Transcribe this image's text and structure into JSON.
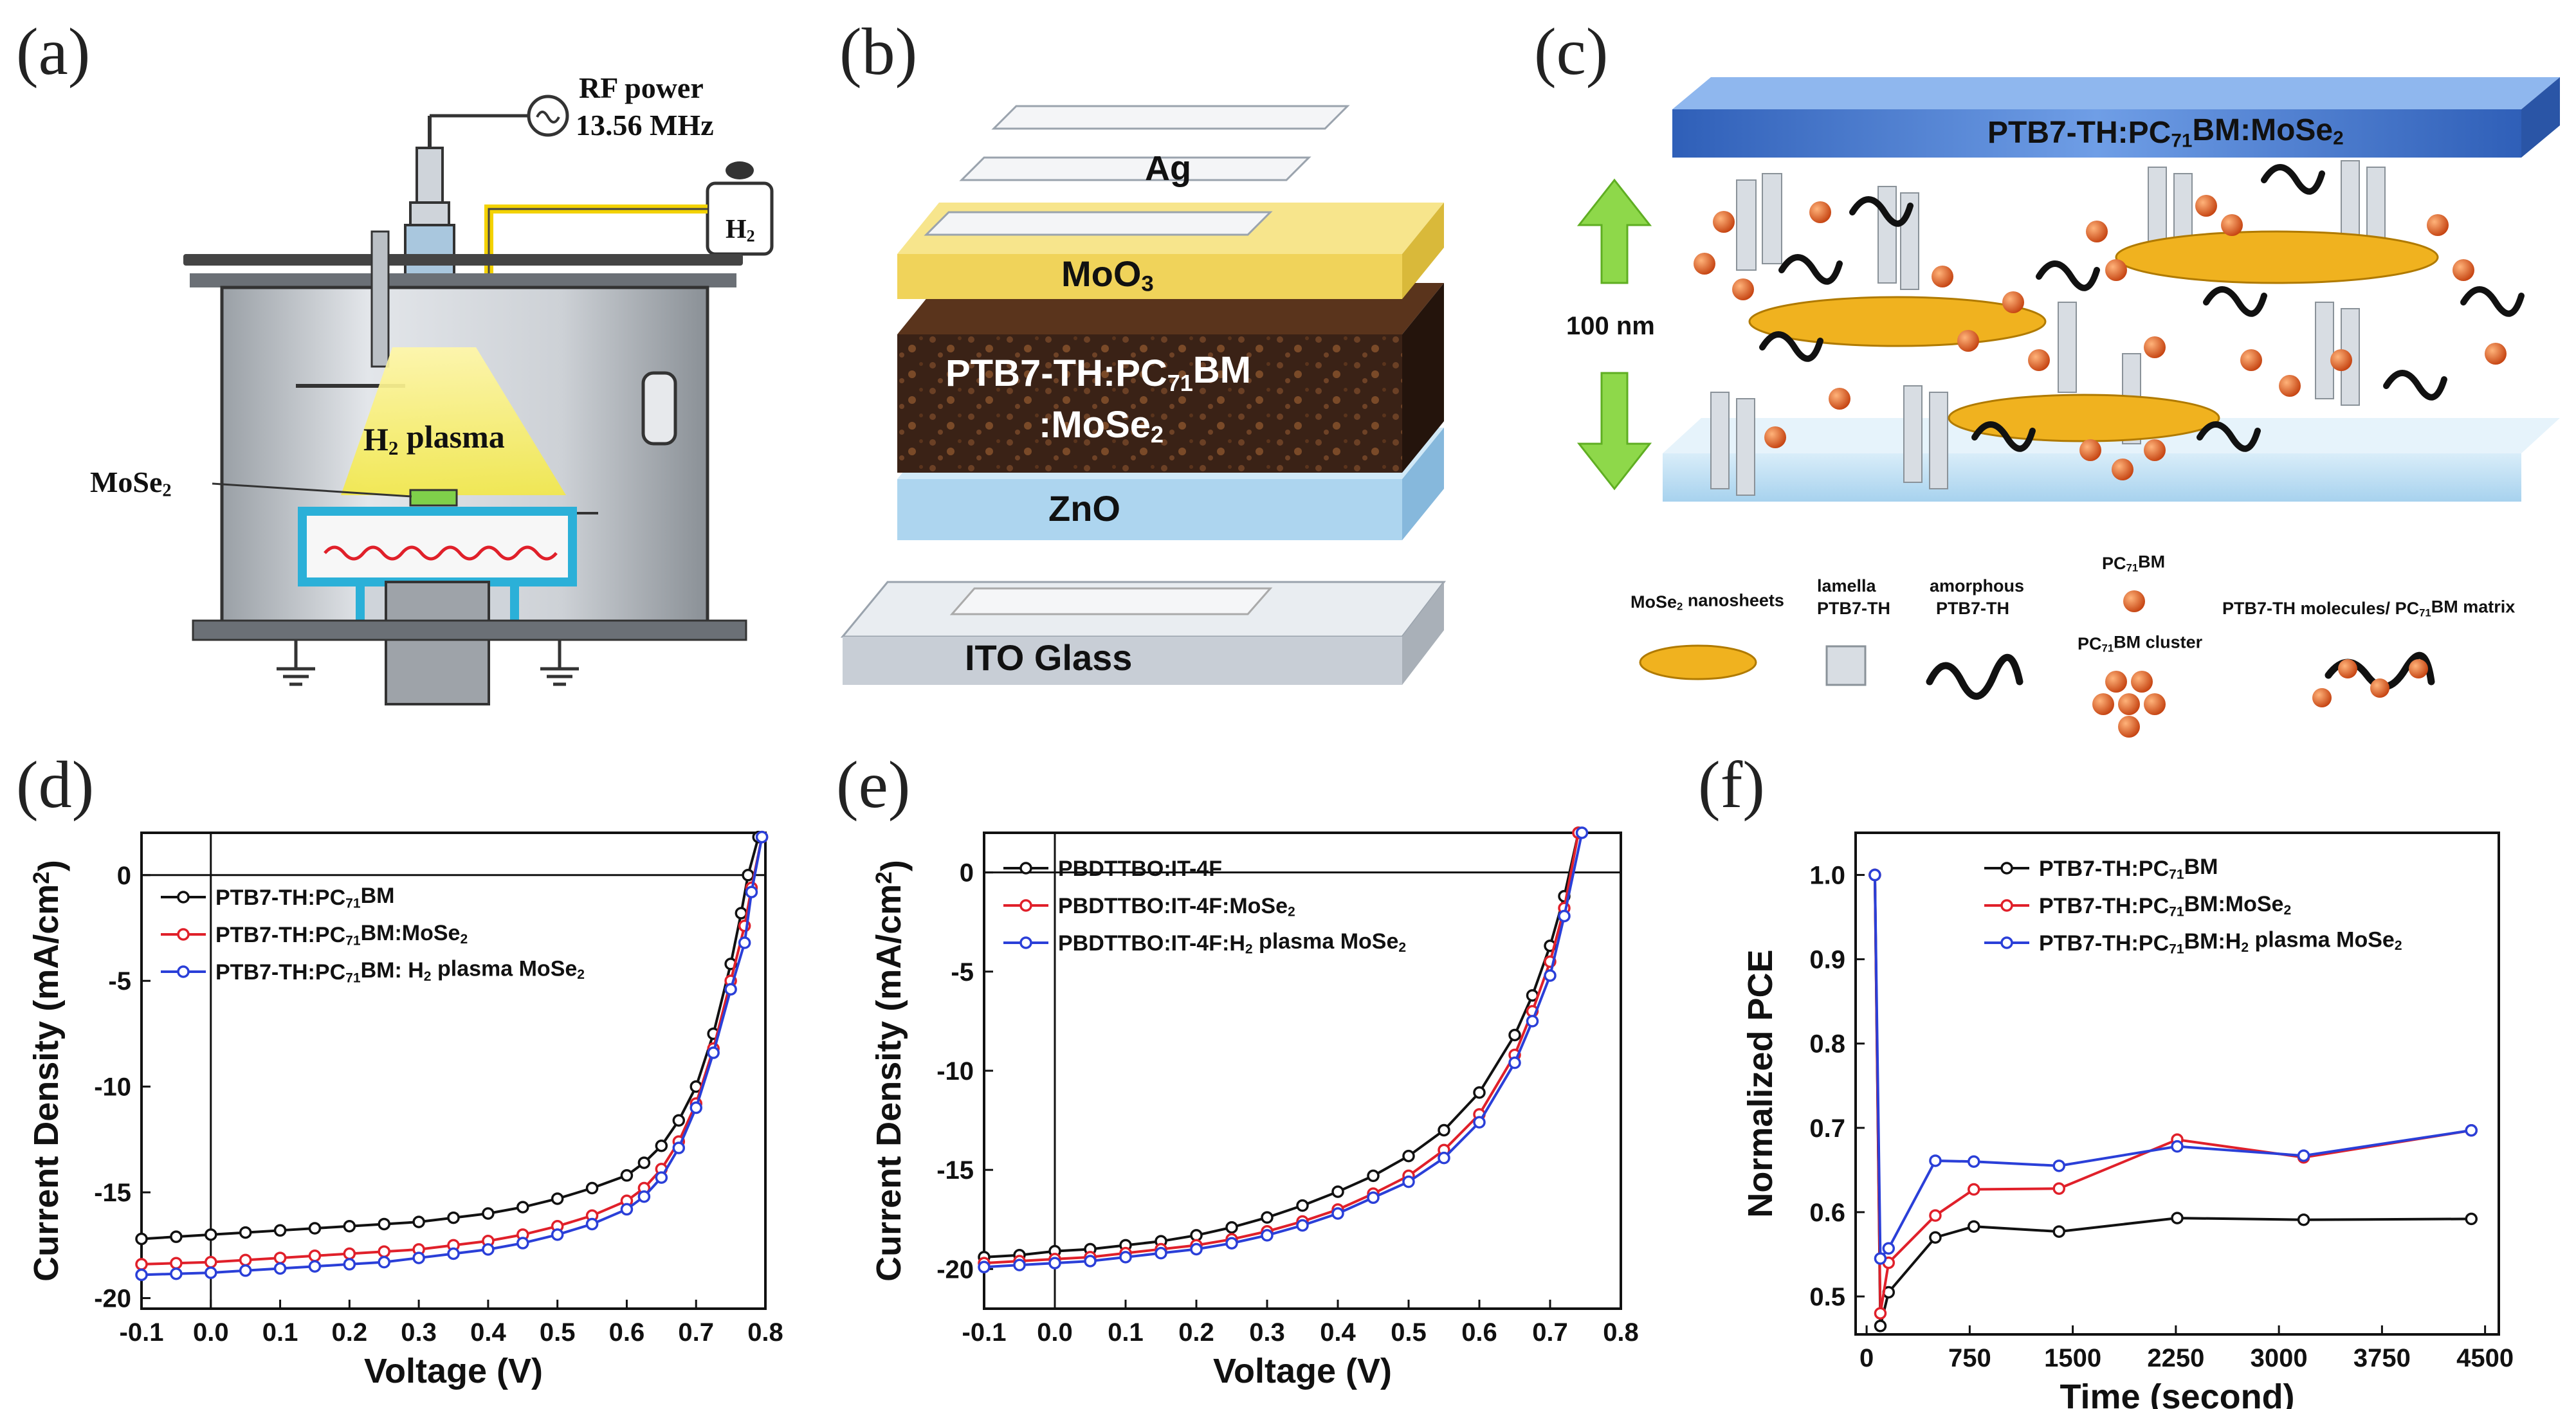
{
  "panels": {
    "a": {
      "label": "(a)",
      "rf_power": "RF power",
      "rf_freq": "13.56 MHz",
      "gas": "H2",
      "plasma": "H2 plasma",
      "sample": "MoSe2"
    },
    "b": {
      "label": "(b)",
      "layers": {
        "ag": "Ag",
        "moo3": "MoO3",
        "active_1": "PTB7-TH:PC71BM",
        "active_2": ":MoSe2",
        "zno": "ZnO",
        "ito": "ITO Glass"
      }
    },
    "c": {
      "label": "(c)",
      "title": "PTB7-TH:PC71BM:MoSe2",
      "thickness": "100 nm",
      "legend": {
        "nanosheets": "MoSe2 nanosheets",
        "lamella_1": "lamella",
        "lamella_2": "PTB7-TH",
        "amorphous_1": "amorphous",
        "amorphous_2": "PTB7-TH",
        "pc71bm": "PC71BM",
        "cluster": "PC71BM cluster",
        "matrix": "PTB7-TH molecules/ PC71BM matrix"
      }
    }
  },
  "colors": {
    "black_series": "#111111",
    "red_series": "#e0202a",
    "blue_series": "#2a3fd8",
    "ag_layer": "#eef0f2",
    "moo3_layer": "#f3d86a",
    "active_layer": "#3a2216",
    "zno_layer": "#a9d3ee",
    "ito_layer": "#c8ced6",
    "nanosheet": "#f0b21f",
    "pc71bm": "#d8581c",
    "arrow": "#8ed84a",
    "top_slab": "#4f86d8"
  },
  "chart_data": [
    {
      "id": "d",
      "label": "(d)",
      "type": "line",
      "xlabel": "Voltage (V)",
      "ylabel": "Current Density (mA/cm2)",
      "xlim": [
        -0.1,
        0.8
      ],
      "ylim": [
        -20.5,
        2.0
      ],
      "xticks": [
        "-0.1",
        "0.0",
        "0.1",
        "0.2",
        "0.3",
        "0.4",
        "0.5",
        "0.6",
        "0.7",
        "0.8"
      ],
      "xtick_values": [
        -0.1,
        0.0,
        0.1,
        0.2,
        0.3,
        0.4,
        0.5,
        0.6,
        0.7,
        0.8
      ],
      "yticks": [
        "0",
        "-5",
        "-10",
        "-15",
        "-20"
      ],
      "ytick_values": [
        0,
        -5,
        -10,
        -15,
        -20
      ],
      "legend_position": "top-left",
      "series": [
        {
          "name": "PTB7-TH:PC71BM",
          "color": "#111111",
          "x": [
            -0.1,
            -0.05,
            0.0,
            0.05,
            0.1,
            0.15,
            0.2,
            0.25,
            0.3,
            0.35,
            0.4,
            0.45,
            0.5,
            0.55,
            0.6,
            0.625,
            0.65,
            0.675,
            0.7,
            0.725,
            0.75,
            0.765,
            0.775,
            0.79
          ],
          "y": [
            -17.2,
            -17.1,
            -17.0,
            -16.9,
            -16.8,
            -16.7,
            -16.6,
            -16.5,
            -16.4,
            -16.2,
            -16.0,
            -15.7,
            -15.3,
            -14.8,
            -14.2,
            -13.6,
            -12.8,
            -11.6,
            -10.0,
            -7.5,
            -4.2,
            -1.8,
            0.0,
            1.8
          ]
        },
        {
          "name": "PTB7-TH:PC71BM:MoSe2",
          "color": "#e0202a",
          "x": [
            -0.1,
            -0.05,
            0.0,
            0.05,
            0.1,
            0.15,
            0.2,
            0.25,
            0.3,
            0.35,
            0.4,
            0.45,
            0.5,
            0.55,
            0.6,
            0.625,
            0.65,
            0.675,
            0.7,
            0.725,
            0.75,
            0.77,
            0.78,
            0.795
          ],
          "y": [
            -18.4,
            -18.35,
            -18.3,
            -18.2,
            -18.1,
            -18.0,
            -17.9,
            -17.8,
            -17.7,
            -17.5,
            -17.3,
            -17.0,
            -16.6,
            -16.1,
            -15.4,
            -14.8,
            -13.9,
            -12.6,
            -10.8,
            -8.2,
            -5.0,
            -2.4,
            -0.6,
            1.8
          ]
        },
        {
          "name": "PTB7-TH:PC71BM: H2 plasma MoSe2",
          "color": "#2a3fd8",
          "x": [
            -0.1,
            -0.05,
            0.0,
            0.05,
            0.1,
            0.15,
            0.2,
            0.25,
            0.3,
            0.35,
            0.4,
            0.45,
            0.5,
            0.55,
            0.6,
            0.625,
            0.65,
            0.675,
            0.7,
            0.725,
            0.75,
            0.77,
            0.78,
            0.795
          ],
          "y": [
            -18.9,
            -18.85,
            -18.8,
            -18.7,
            -18.6,
            -18.5,
            -18.4,
            -18.3,
            -18.1,
            -17.9,
            -17.7,
            -17.4,
            -17.0,
            -16.5,
            -15.8,
            -15.2,
            -14.3,
            -12.9,
            -11.0,
            -8.4,
            -5.4,
            -3.2,
            -0.8,
            1.8
          ]
        }
      ]
    },
    {
      "id": "e",
      "label": "(e)",
      "type": "line",
      "xlabel": "Voltage (V)",
      "ylabel": "Current Density (mA/cm2)",
      "xlim": [
        -0.1,
        0.8
      ],
      "ylim": [
        -22.0,
        2.0
      ],
      "xticks": [
        "-0.1",
        "0.0",
        "0.1",
        "0.2",
        "0.3",
        "0.4",
        "0.5",
        "0.6",
        "0.7",
        "0.8"
      ],
      "xtick_values": [
        -0.1,
        0.0,
        0.1,
        0.2,
        0.3,
        0.4,
        0.5,
        0.6,
        0.7,
        0.8
      ],
      "yticks": [
        "0",
        "-5",
        "-10",
        "-15",
        "-20"
      ],
      "ytick_values": [
        0,
        -5,
        -10,
        -15,
        -20
      ],
      "legend_position": "top-left",
      "series": [
        {
          "name": "PBDTTBO:IT-4F",
          "color": "#111111",
          "x": [
            -0.1,
            -0.05,
            0.0,
            0.05,
            0.1,
            0.15,
            0.2,
            0.25,
            0.3,
            0.35,
            0.4,
            0.45,
            0.5,
            0.55,
            0.6,
            0.65,
            0.675,
            0.7,
            0.72,
            0.74
          ],
          "y": [
            -19.4,
            -19.3,
            -19.1,
            -19.0,
            -18.8,
            -18.6,
            -18.3,
            -17.9,
            -17.4,
            -16.8,
            -16.1,
            -15.3,
            -14.3,
            -13.0,
            -11.1,
            -8.2,
            -6.2,
            -3.7,
            -1.2,
            2.0
          ]
        },
        {
          "name": "PBDTTBO:IT-4F:MoSe2",
          "color": "#e0202a",
          "x": [
            -0.1,
            -0.05,
            0.0,
            0.05,
            0.1,
            0.15,
            0.2,
            0.25,
            0.3,
            0.35,
            0.4,
            0.45,
            0.5,
            0.55,
            0.6,
            0.65,
            0.675,
            0.7,
            0.72,
            0.74
          ],
          "y": [
            -19.7,
            -19.6,
            -19.5,
            -19.4,
            -19.2,
            -19.0,
            -18.8,
            -18.5,
            -18.1,
            -17.6,
            -17.0,
            -16.2,
            -15.3,
            -14.0,
            -12.2,
            -9.2,
            -7.0,
            -4.5,
            -1.8,
            2.0
          ]
        },
        {
          "name": "PBDTTBO:IT-4F:H2 plasma MoSe2",
          "color": "#2a3fd8",
          "x": [
            -0.1,
            -0.05,
            0.0,
            0.05,
            0.1,
            0.15,
            0.2,
            0.25,
            0.3,
            0.35,
            0.4,
            0.45,
            0.5,
            0.55,
            0.6,
            0.65,
            0.675,
            0.7,
            0.72,
            0.745
          ],
          "y": [
            -19.9,
            -19.8,
            -19.7,
            -19.6,
            -19.4,
            -19.2,
            -19.0,
            -18.7,
            -18.3,
            -17.8,
            -17.2,
            -16.4,
            -15.6,
            -14.4,
            -12.6,
            -9.6,
            -7.5,
            -5.2,
            -2.2,
            2.0
          ]
        }
      ]
    },
    {
      "id": "f",
      "label": "(f)",
      "type": "line",
      "xlabel": "Time (second)",
      "ylabel": "Normalized PCE",
      "xlim": [
        -80,
        4600
      ],
      "ylim": [
        0.455,
        1.05
      ],
      "xticks": [
        "0",
        "750",
        "1500",
        "2250",
        "3000",
        "3750",
        "4500"
      ],
      "xtick_values": [
        0,
        750,
        1500,
        2250,
        3000,
        3750,
        4500
      ],
      "yticks": [
        "0.5",
        "0.6",
        "0.7",
        "0.8",
        "0.9",
        "1.0"
      ],
      "ytick_values": [
        0.5,
        0.6,
        0.7,
        0.8,
        0.9,
        1.0
      ],
      "legend_position": "top-right",
      "series": [
        {
          "name": "PTB7-TH:PC71BM",
          "color": "#111111",
          "x": [
            60,
            100,
            160,
            500,
            780,
            1400,
            2260,
            3180,
            4400
          ],
          "y": [
            1.0,
            0.465,
            0.505,
            0.57,
            0.583,
            0.577,
            0.593,
            0.591,
            0.592
          ]
        },
        {
          "name": "PTB7-TH:PC71BM:MoSe2",
          "color": "#e0202a",
          "x": [
            60,
            100,
            160,
            500,
            780,
            1400,
            2260,
            3180,
            4400
          ],
          "y": [
            1.0,
            0.48,
            0.54,
            0.596,
            0.627,
            0.628,
            0.686,
            0.665,
            0.697
          ]
        },
        {
          "name": "PTB7-TH:PC71BM:H2 plasma MoSe2",
          "color": "#2a3fd8",
          "x": [
            60,
            100,
            160,
            500,
            780,
            1400,
            2260,
            3180,
            4400
          ],
          "y": [
            1.0,
            0.545,
            0.557,
            0.661,
            0.66,
            0.655,
            0.678,
            0.667,
            0.697
          ]
        }
      ]
    }
  ]
}
